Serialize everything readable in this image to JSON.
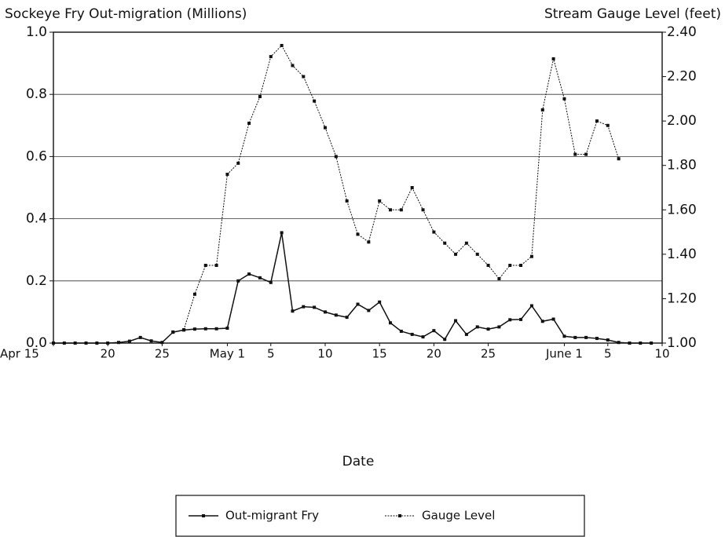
{
  "chart_data": {
    "type": "line",
    "title": "Sockeye Fry Out-migration (Millions)",
    "y2_title": "Stream Gauge Level (feet)",
    "xlabel": "Date",
    "xlim": [
      15,
      71
    ],
    "xticks": [
      {
        "value": 15,
        "label": "Apr 15"
      },
      20,
      25,
      {
        "value": 31,
        "label": "May 1"
      },
      {
        "value": 35,
        "label": "5"
      },
      {
        "value": 40,
        "label": "10"
      },
      {
        "value": 45,
        "label": "15"
      },
      {
        "value": 50,
        "label": "20"
      },
      {
        "value": 55,
        "label": "25"
      },
      {
        "value": 62,
        "label": "June 1"
      },
      {
        "value": 66,
        "label": "5"
      },
      {
        "value": 71,
        "label": "10"
      }
    ],
    "ylim": [
      0,
      1
    ],
    "yticks": [
      {
        "value": 0,
        "label": "0.0"
      },
      {
        "value": 0.2,
        "label": "0.2"
      },
      {
        "value": 0.4,
        "label": "0.4"
      },
      {
        "value": 0.6,
        "label": "0.6"
      },
      {
        "value": 0.8,
        "label": "0.8"
      },
      {
        "value": 1,
        "label": "1.0"
      }
    ],
    "y2lim": [
      1,
      2.4
    ],
    "y2ticks": [
      {
        "value": 1,
        "label": "1.00"
      },
      {
        "value": 1.2,
        "label": "1.20"
      },
      {
        "value": 1.4,
        "label": "1.40"
      },
      {
        "value": 1.6,
        "label": "1.60"
      },
      {
        "value": 1.8,
        "label": "1.80"
      },
      {
        "value": 2,
        "label": "2.00"
      },
      {
        "value": 2.2,
        "label": "2.20"
      },
      {
        "value": 2.4,
        "label": "2.40"
      }
    ],
    "grid": true,
    "legend": "bottom",
    "series": [
      {
        "name": "Out-migrant Fry",
        "color": "#111111",
        "dash": "solid",
        "x": [
          15,
          16,
          17,
          18,
          19,
          20,
          21,
          22,
          23,
          24,
          25,
          26,
          27,
          28,
          29,
          30,
          31,
          32,
          33,
          34,
          35,
          36,
          37,
          38,
          39,
          40,
          41,
          42,
          43,
          44,
          45,
          46,
          47,
          48,
          49,
          50,
          51,
          52,
          53,
          54,
          55,
          56,
          57,
          58,
          59,
          60,
          61,
          62,
          63,
          64,
          65,
          66,
          67,
          68,
          69,
          70
        ],
        "values": [
          0,
          0,
          0,
          0,
          0,
          0,
          0.002,
          0.006,
          0.018,
          0.007,
          0.002,
          0.035,
          0.042,
          0.045,
          0.046,
          0.046,
          0.048,
          0.2,
          0.222,
          0.21,
          0.195,
          0.355,
          0.103,
          0.117,
          0.115,
          0.1,
          0.09,
          0.083,
          0.125,
          0.105,
          0.132,
          0.065,
          0.038,
          0.028,
          0.02,
          0.04,
          0.012,
          0.072,
          0.028,
          0.052,
          0.045,
          0.052,
          0.075,
          0.076,
          0.12,
          0.07,
          0.077,
          0.022,
          0.018,
          0.018,
          0.015,
          0.01,
          0.002,
          0,
          0,
          0
        ]
      },
      {
        "name": "Gauge Level",
        "color": "#111111",
        "dash": "dotted",
        "axis": "y2",
        "x": [
          26,
          27,
          28,
          29,
          30,
          31,
          32,
          33,
          34,
          35,
          36,
          37,
          38,
          39,
          40,
          41,
          42,
          43,
          44,
          45,
          46,
          47,
          48,
          49,
          50,
          51,
          52,
          53,
          54,
          55,
          56,
          57,
          58,
          59,
          60,
          61,
          62,
          63,
          64,
          65,
          66,
          67
        ],
        "values": [
          1.05,
          1.06,
          1.22,
          1.35,
          1.35,
          1.76,
          1.81,
          1.99,
          2.11,
          2.29,
          2.34,
          2.25,
          2.2,
          2.09,
          1.97,
          1.84,
          1.64,
          1.49,
          1.455,
          1.64,
          1.6,
          1.6,
          1.7,
          1.6,
          1.5,
          1.45,
          1.4,
          1.45,
          1.4,
          1.35,
          1.29,
          1.35,
          1.35,
          1.39,
          2.05,
          2.28,
          2.1,
          1.85,
          1.85,
          2,
          1.98,
          1.83
        ]
      }
    ]
  }
}
